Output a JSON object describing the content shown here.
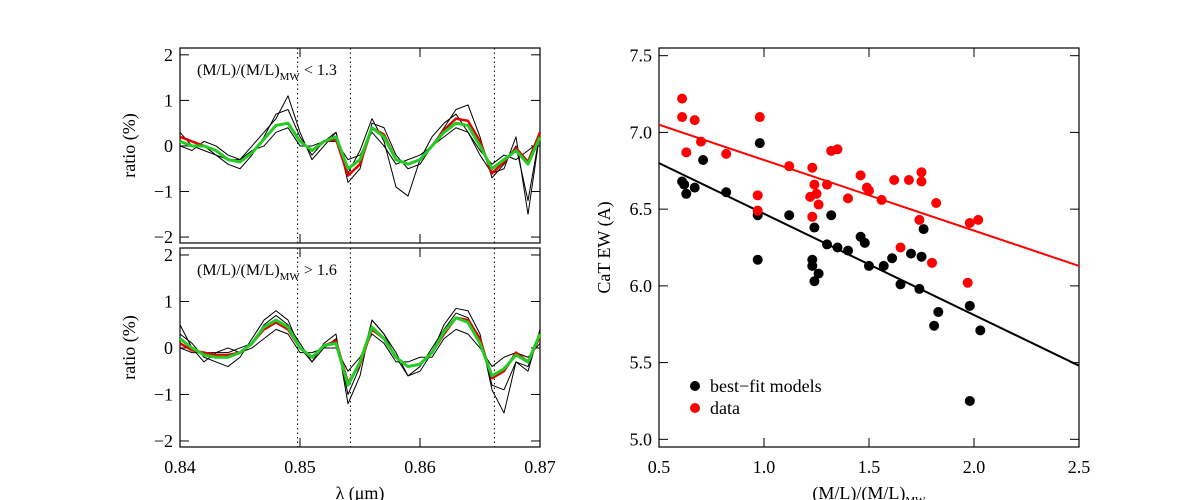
{
  "chart_data": [
    {
      "type": "line",
      "ylabel": "ratio (%)",
      "annotation": {
        "text": "(M/L)/(M/L)",
        "sub": "MW",
        "suffix": "< 1.3"
      },
      "x": [
        0.84,
        0.841,
        0.842,
        0.843,
        0.844,
        0.845,
        0.846,
        0.847,
        0.848,
        0.849,
        0.85,
        0.851,
        0.852,
        0.853,
        0.854,
        0.855,
        0.856,
        0.857,
        0.858,
        0.859,
        0.86,
        0.861,
        0.862,
        0.863,
        0.864,
        0.865,
        0.866,
        0.867,
        0.868,
        0.869,
        0.87
      ],
      "xlim": [
        0.84,
        0.87
      ],
      "xticks": [
        0.84,
        0.85,
        0.86,
        0.87
      ],
      "show_xtick_labels": false,
      "ylim": [
        -2.13,
        2.15
      ],
      "yticks": [
        {
          "value": -2,
          "label": "−2"
        },
        {
          "value": -1,
          "label": "−1"
        },
        0,
        1,
        2
      ],
      "vlines": [
        0.8498,
        0.8542,
        0.8662
      ],
      "series": [
        {
          "color": "#000000",
          "width": 1,
          "values": [
            0.2,
            0.1,
            0.0,
            -0.2,
            -0.4,
            -0.5,
            -0.2,
            0.2,
            0.7,
            0.8,
            0.2,
            -0.2,
            0.1,
            0.3,
            -0.8,
            -0.5,
            0.5,
            0.4,
            -0.2,
            -0.5,
            -0.4,
            0.0,
            0.4,
            0.8,
            0.9,
            0.2,
            -0.7,
            -0.4,
            0.0,
            -1.2,
            0.3
          ]
        },
        {
          "color": "#000000",
          "width": 1,
          "values": [
            0.0,
            -0.1,
            0.1,
            0.0,
            -0.2,
            -0.3,
            -0.1,
            0.0,
            0.3,
            0.4,
            0.0,
            0.0,
            0.1,
            0.1,
            -0.3,
            -0.2,
            0.3,
            0.0,
            -0.4,
            -0.3,
            -0.2,
            0.0,
            0.2,
            0.4,
            0.3,
            -0.1,
            -0.4,
            -0.2,
            -0.3,
            -0.1,
            0.1
          ]
        },
        {
          "color": "#000000",
          "width": 1,
          "values": [
            0.3,
            0.0,
            -0.1,
            -0.2,
            -0.3,
            -0.3,
            0.0,
            0.3,
            0.6,
            1.1,
            0.3,
            -0.3,
            0.0,
            0.3,
            -0.6,
            -0.1,
            0.6,
            0.1,
            -0.9,
            -1.1,
            -0.3,
            0.2,
            0.5,
            0.7,
            0.3,
            -0.2,
            -0.6,
            -0.5,
            0.2,
            -1.5,
            0.3
          ]
        },
        {
          "color": "#e00000",
          "width": 2.5,
          "values": [
            0.2,
            0.1,
            0.0,
            -0.1,
            -0.3,
            -0.35,
            -0.15,
            0.15,
            0.45,
            0.5,
            0.1,
            -0.1,
            0.1,
            0.15,
            -0.65,
            -0.4,
            0.4,
            0.25,
            -0.3,
            -0.4,
            -0.3,
            0.0,
            0.35,
            0.6,
            0.55,
            0.1,
            -0.6,
            -0.35,
            -0.05,
            -0.35,
            0.3
          ]
        },
        {
          "color": "#22cc22",
          "width": 3,
          "values": [
            0.1,
            0.0,
            0.0,
            -0.1,
            -0.3,
            -0.35,
            -0.15,
            0.15,
            0.45,
            0.5,
            0.1,
            -0.1,
            0.1,
            0.2,
            -0.5,
            -0.3,
            0.4,
            0.2,
            -0.3,
            -0.4,
            -0.3,
            0.0,
            0.3,
            0.5,
            0.45,
            0.0,
            -0.5,
            -0.3,
            -0.1,
            -0.4,
            0.2
          ]
        }
      ]
    },
    {
      "type": "line",
      "xlabel": "λ (μm)",
      "ylabel": "ratio (%)",
      "annotation": {
        "text": "(M/L)/(M/L)",
        "sub": "MW",
        "suffix": "> 1.6"
      },
      "x": [
        0.84,
        0.841,
        0.842,
        0.843,
        0.844,
        0.845,
        0.846,
        0.847,
        0.848,
        0.849,
        0.85,
        0.851,
        0.852,
        0.853,
        0.854,
        0.855,
        0.856,
        0.857,
        0.858,
        0.859,
        0.86,
        0.861,
        0.862,
        0.863,
        0.864,
        0.865,
        0.866,
        0.867,
        0.868,
        0.869,
        0.87
      ],
      "xlim": [
        0.84,
        0.87
      ],
      "xticks": [
        0.84,
        0.85,
        0.86,
        0.87
      ],
      "ylim": [
        -2.13,
        2.15
      ],
      "yticks": [
        {
          "value": -2,
          "label": "−2"
        },
        {
          "value": -1,
          "label": "−1"
        },
        0,
        1,
        2
      ],
      "vlines": [
        0.8498,
        0.8542,
        0.8662
      ],
      "series": [
        {
          "color": "#000000",
          "width": 1,
          "values": [
            0.3,
            0.1,
            -0.2,
            -0.3,
            -0.4,
            -0.2,
            0.2,
            0.6,
            0.8,
            0.6,
            0.0,
            -0.3,
            0.1,
            0.3,
            -1.2,
            -0.6,
            0.6,
            0.3,
            -0.2,
            -0.6,
            -0.5,
            -0.1,
            0.5,
            0.85,
            0.8,
            0.3,
            -0.9,
            -1.4,
            -0.3,
            -0.4,
            0.3
          ]
        },
        {
          "color": "#000000",
          "width": 1,
          "values": [
            0.0,
            -0.1,
            -0.1,
            -0.1,
            0.0,
            -0.1,
            0.0,
            0.2,
            0.4,
            0.3,
            -0.1,
            -0.1,
            0.0,
            0.0,
            -0.5,
            -0.2,
            0.3,
            0.1,
            -0.3,
            -0.3,
            -0.2,
            -0.2,
            0.2,
            0.4,
            0.3,
            0.0,
            -0.4,
            -0.2,
            -0.1,
            -0.2,
            0.1
          ]
        },
        {
          "color": "#000000",
          "width": 1,
          "values": [
            0.5,
            0.0,
            -0.3,
            -0.1,
            -0.1,
            0.0,
            0.1,
            0.5,
            0.7,
            0.5,
            0.1,
            -0.3,
            0.0,
            0.2,
            -1.0,
            -0.4,
            0.6,
            0.3,
            -0.1,
            -0.6,
            -0.4,
            0.0,
            0.4,
            0.75,
            0.65,
            0.2,
            -0.8,
            -0.9,
            -0.3,
            -0.5,
            0.4
          ]
        },
        {
          "color": "#e00000",
          "width": 2.5,
          "values": [
            0.1,
            -0.05,
            -0.1,
            -0.15,
            -0.15,
            -0.1,
            0.1,
            0.4,
            0.55,
            0.4,
            0.0,
            -0.2,
            0.05,
            0.15,
            -0.75,
            -0.35,
            0.4,
            0.2,
            -0.2,
            -0.4,
            -0.35,
            -0.1,
            0.3,
            0.65,
            0.6,
            0.2,
            -0.65,
            -0.5,
            -0.1,
            -0.3,
            0.25
          ]
        },
        {
          "color": "#22cc22",
          "width": 3,
          "values": [
            0.2,
            0.0,
            -0.15,
            -0.2,
            -0.2,
            -0.1,
            0.1,
            0.45,
            0.6,
            0.45,
            0.0,
            -0.2,
            0.05,
            0.1,
            -0.8,
            -0.3,
            0.45,
            0.2,
            -0.2,
            -0.4,
            -0.35,
            -0.1,
            0.35,
            0.65,
            0.55,
            0.1,
            -0.6,
            -0.45,
            -0.15,
            -0.3,
            0.3
          ]
        }
      ]
    },
    {
      "type": "scatter",
      "xlabel": {
        "text": "(M/L)/(M/L)",
        "sub": "MW"
      },
      "ylabel": "CaT EW (A)",
      "xlim": [
        0.5,
        2.5
      ],
      "xticks": [
        0.5,
        {
          "value": 1.0,
          "label": "1.0"
        },
        1.5,
        {
          "value": 2.0,
          "label": "2.0"
        },
        2.5
      ],
      "ylim": [
        4.95,
        7.55
      ],
      "yticks": [
        {
          "value": 5.0,
          "label": "5.0"
        },
        5.5,
        {
          "value": 6.0,
          "label": "6.0"
        },
        6.5,
        {
          "value": 7.0,
          "label": "7.0"
        },
        7.5
      ],
      "legend": "lower left",
      "series": [
        {
          "name": "best−fit models",
          "color": "#000000",
          "x": [
            0.61,
            0.62,
            0.63,
            0.67,
            0.71,
            0.82,
            0.97,
            0.97,
            0.98,
            1.12,
            1.23,
            1.23,
            1.24,
            1.24,
            1.26,
            1.3,
            1.32,
            1.35,
            1.4,
            1.46,
            1.48,
            1.5,
            1.57,
            1.61,
            1.65,
            1.7,
            1.74,
            1.75,
            1.76,
            1.81,
            1.83,
            1.98,
            1.98,
            2.03
          ],
          "values": [
            6.68,
            6.66,
            6.6,
            6.64,
            6.82,
            6.61,
            6.46,
            6.17,
            6.93,
            6.46,
            6.13,
            6.17,
            6.38,
            6.03,
            6.08,
            6.27,
            6.46,
            6.25,
            6.23,
            6.32,
            6.28,
            6.13,
            6.13,
            6.18,
            6.01,
            6.21,
            5.98,
            6.19,
            6.37,
            5.74,
            5.83,
            5.25,
            5.87,
            5.71
          ]
        },
        {
          "name": "data",
          "color": "#ff0000",
          "x": [
            0.61,
            0.61,
            0.63,
            0.67,
            0.7,
            0.82,
            0.97,
            0.97,
            0.98,
            1.12,
            1.23,
            1.22,
            1.23,
            1.24,
            1.25,
            1.26,
            1.3,
            1.32,
            1.35,
            1.4,
            1.46,
            1.49,
            1.5,
            1.56,
            1.62,
            1.65,
            1.69,
            1.74,
            1.75,
            1.75,
            1.8,
            1.82,
            1.97,
            1.98,
            2.02
          ],
          "values": [
            7.22,
            7.1,
            6.87,
            7.08,
            6.94,
            6.86,
            6.59,
            6.49,
            7.1,
            6.78,
            6.77,
            6.58,
            6.45,
            6.66,
            6.6,
            6.53,
            6.66,
            6.88,
            6.89,
            6.57,
            6.72,
            6.64,
            6.62,
            6.56,
            6.69,
            6.25,
            6.69,
            6.43,
            6.74,
            6.68,
            6.15,
            6.54,
            6.02,
            6.41,
            6.43
          ]
        }
      ],
      "fit_lines": [
        {
          "color": "#ff0000",
          "x": [
            0.5,
            2.5
          ],
          "values": [
            7.05,
            6.13
          ]
        },
        {
          "color": "#000000",
          "x": [
            0.5,
            2.5
          ],
          "values": [
            6.8,
            5.48
          ]
        }
      ]
    }
  ]
}
